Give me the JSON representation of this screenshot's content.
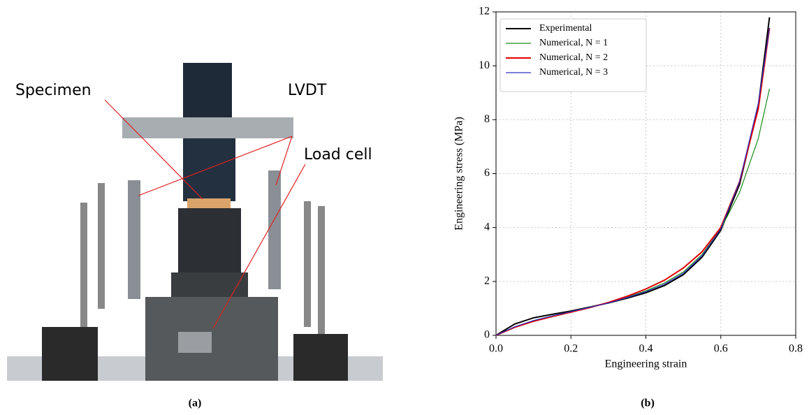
{
  "photo": {
    "labels": [
      "Specimen",
      "LVDT",
      "Load cell"
    ]
  },
  "captions": [
    "(a)",
    "(b)"
  ],
  "chart_data": {
    "type": "line",
    "xlabel": "Engineering strain",
    "ylabel": "Engineering stress (MPa)",
    "x": [
      0,
      0.05,
      0.1,
      0.15,
      0.2,
      0.25,
      0.3,
      0.35,
      0.4,
      0.45,
      0.5,
      0.55,
      0.6,
      0.65,
      0.7,
      0.73
    ],
    "series": [
      {
        "name": "Experimental",
        "color": "#000000",
        "width": 2,
        "values": [
          0,
          0.42,
          0.65,
          0.78,
          0.9,
          1.05,
          1.2,
          1.38,
          1.58,
          1.85,
          2.25,
          2.9,
          3.9,
          5.6,
          8.5,
          11.8
        ]
      },
      {
        "name": "Numerical, N = 1",
        "color": "#1a8a1a",
        "width": 1.2,
        "values": [
          0,
          0.3,
          0.55,
          0.72,
          0.88,
          1.05,
          1.22,
          1.42,
          1.65,
          1.95,
          2.35,
          3.0,
          3.95,
          5.3,
          7.3,
          9.15
        ]
      },
      {
        "name": "Numerical, N = 2",
        "color": "#e00000",
        "width": 2,
        "values": [
          0,
          0.3,
          0.52,
          0.7,
          0.86,
          1.03,
          1.22,
          1.45,
          1.72,
          2.05,
          2.5,
          3.1,
          4.0,
          5.7,
          8.4,
          11.4
        ]
      },
      {
        "name": "Numerical, N = 3",
        "color": "#3030c0",
        "width": 1.2,
        "values": [
          0,
          0.32,
          0.55,
          0.72,
          0.88,
          1.04,
          1.2,
          1.4,
          1.62,
          1.9,
          2.3,
          2.95,
          3.95,
          5.7,
          8.6,
          11.4
        ]
      }
    ],
    "xlim": [
      0,
      0.8
    ],
    "xticks": [
      {
        "value": 0,
        "label": "0.0"
      },
      0.2,
      0.4,
      0.6,
      0.8
    ],
    "ylim": [
      0,
      12
    ],
    "yticks": [
      0,
      2,
      4,
      6,
      8,
      10,
      12
    ],
    "grid": true,
    "legend": "upper-left"
  }
}
